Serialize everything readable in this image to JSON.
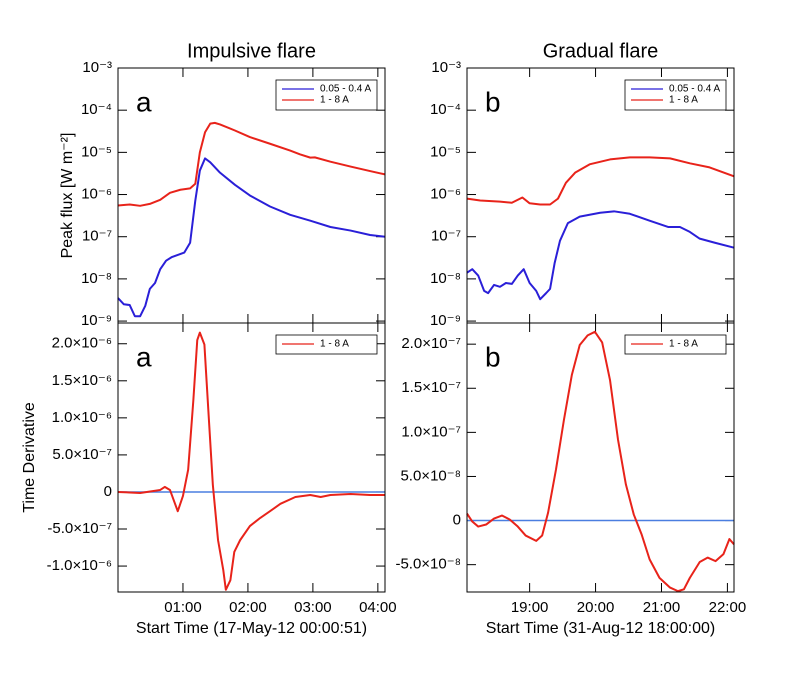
{
  "chart_data": [
    {
      "type": "line",
      "title": "Impulsive flare",
      "annotation": "a",
      "ylabel": "Peak flux [W m⁻²]",
      "log": true,
      "legend": "upper right",
      "xlim": [
        0,
        4.11
      ],
      "xticks": [
        1,
        2,
        3,
        4
      ],
      "ylim": [
        9e-10,
        0.001
      ],
      "yticks": [
        {
          "value": 0.001,
          "label": "10⁻³"
        },
        {
          "value": 0.0001,
          "label": "10⁻⁴"
        },
        {
          "value": 1e-05,
          "label": "10⁻⁵"
        },
        {
          "value": 1e-06,
          "label": "10⁻⁶"
        },
        {
          "value": 1e-07,
          "label": "10⁻⁷"
        },
        {
          "value": 1e-08,
          "label": "10⁻⁸"
        },
        {
          "value": 1e-09,
          "label": "10⁻⁹"
        }
      ],
      "series": [
        {
          "name": "0.05 - 0.4 A",
          "color": "#2a1fd8",
          "x": [
            0,
            0.09,
            0.18,
            0.26,
            0.34,
            0.42,
            0.49,
            0.57,
            0.65,
            0.74,
            0.83,
            0.92,
            1.02,
            1.11,
            1.19,
            1.26,
            1.34,
            1.42,
            1.57,
            1.8,
            2.03,
            2.34,
            2.65,
            2.96,
            3.27,
            3.58,
            3.88,
            4.11
          ],
          "values": [
            3.5e-09,
            2.5e-09,
            2.4e-09,
            1.3e-09,
            1.3e-09,
            2.3e-09,
            5.8e-09,
            8e-09,
            1.7e-08,
            2.7e-08,
            3.3e-08,
            3.7e-08,
            4.2e-08,
            7.2e-08,
            7.2e-07,
            3.7e-06,
            7.2e-06,
            5.8e-06,
            3.3e-06,
            1.7e-06,
            9.5e-07,
            5.2e-07,
            3.3e-07,
            2.4e-07,
            1.7e-07,
            1.4e-07,
            1.1e-07,
            1e-07
          ]
        },
        {
          "name": "1 - 8 A",
          "color": "#e8231a",
          "x": [
            0,
            0.18,
            0.34,
            0.49,
            0.65,
            0.8,
            0.96,
            1.11,
            1.19,
            1.26,
            1.34,
            1.42,
            1.49,
            1.57,
            1.8,
            2.03,
            2.34,
            2.65,
            2.8,
            2.96,
            3.03,
            3.27,
            3.58,
            3.88,
            4.11
          ],
          "values": [
            5.5e-07,
            5.8e-07,
            5.4e-07,
            6e-07,
            7.5e-07,
            1.1e-06,
            1.3e-06,
            1.4e-06,
            1.8e-06,
            1e-05,
            3e-05,
            4.8e-05,
            5e-05,
            4.6e-05,
            3.3e-05,
            2.3e-05,
            1.6e-05,
            1.1e-05,
            9e-06,
            7.5e-06,
            7.6e-06,
            6e-06,
            4.6e-06,
            3.6e-06,
            3e-06
          ]
        }
      ]
    },
    {
      "type": "line",
      "title": "Gradual flare",
      "annotation": "b",
      "log": true,
      "legend": "upper right",
      "xlim": [
        18.05,
        22.1
      ],
      "xticks": [
        19,
        20,
        21,
        22
      ],
      "ylim": [
        9e-10,
        0.001
      ],
      "yticks": [
        {
          "value": 0.001,
          "label": "10⁻³"
        },
        {
          "value": 0.0001,
          "label": "10⁻⁴"
        },
        {
          "value": 1e-05,
          "label": "10⁻⁵"
        },
        {
          "value": 1e-06,
          "label": "10⁻⁶"
        },
        {
          "value": 1e-07,
          "label": "10⁻⁷"
        },
        {
          "value": 1e-08,
          "label": "10⁻⁸"
        },
        {
          "value": 1e-09,
          "label": "10⁻⁹"
        }
      ],
      "series": [
        {
          "name": "0.05 - 0.4 A",
          "color": "#2a1fd8",
          "x": [
            18.05,
            18.13,
            18.22,
            18.31,
            18.37,
            18.46,
            18.55,
            18.64,
            18.73,
            18.82,
            18.91,
            19.0,
            19.1,
            19.16,
            19.25,
            19.31,
            19.38,
            19.46,
            19.58,
            19.76,
            20.07,
            20.28,
            20.52,
            20.82,
            21.1,
            21.28,
            21.43,
            21.58,
            21.81,
            22.1
          ],
          "values": [
            1.4e-08,
            1.7e-08,
            1.2e-08,
            5.2e-09,
            4.6e-09,
            7.2e-09,
            6.5e-09,
            8e-09,
            7.6e-09,
            1.2e-08,
            1.7e-08,
            8e-09,
            5.2e-09,
            3.3e-09,
            4.6e-09,
            5.8e-09,
            2.4e-08,
            8e-08,
            2.1e-07,
            3e-07,
            3.7e-07,
            4e-07,
            3.5e-07,
            2.4e-07,
            1.7e-07,
            1.7e-07,
            1.3e-07,
            9e-08,
            7.2e-08,
            5.5e-08
          ]
        },
        {
          "name": "1 - 8 A",
          "color": "#e8231a",
          "x": [
            18.05,
            18.25,
            18.55,
            18.73,
            18.89,
            19.0,
            19.16,
            19.31,
            19.43,
            19.55,
            19.69,
            19.91,
            20.22,
            20.52,
            20.82,
            21.13,
            21.43,
            21.73,
            22.1
          ],
          "values": [
            8e-07,
            7.2e-07,
            6.8e-07,
            6.4e-07,
            8.5e-07,
            6.2e-07,
            5.8e-07,
            5.8e-07,
            8e-07,
            1.9e-06,
            3.3e-06,
            5.2e-06,
            6.8e-06,
            7.6e-06,
            7.6e-06,
            7.2e-06,
            5.5e-06,
            4.4e-06,
            2.7e-06
          ]
        }
      ]
    },
    {
      "type": "line",
      "annotation": "a",
      "ylabel": "Time Derivative",
      "xlabel": "Start Time (17-May-12 00:00:51)",
      "legend": "upper right",
      "xlim": [
        0,
        4.11
      ],
      "xticks": [
        {
          "value": 1,
          "label": "01:00"
        },
        {
          "value": 2,
          "label": "02:00"
        },
        {
          "value": 3,
          "label": "03:00"
        },
        {
          "value": 4,
          "label": "04:00"
        }
      ],
      "ylim": [
        -1.35e-06,
        2.28e-06
      ],
      "yticks": [
        {
          "value": 2e-06,
          "label": "2.0×10⁻⁶"
        },
        {
          "value": 1.5e-06,
          "label": "1.5×10⁻⁶"
        },
        {
          "value": 1e-06,
          "label": "1.0×10⁻⁶"
        },
        {
          "value": 5e-07,
          "label": "5.0×10⁻⁷"
        },
        0,
        {
          "value": -5e-07,
          "label": "-5.0×10⁻⁷"
        },
        {
          "value": -1e-06,
          "label": "-1.0×10⁻⁶"
        }
      ],
      "reference_line": {
        "value": 0,
        "color": "#4a7ee0"
      },
      "series": [
        {
          "name": "1 - 8 A",
          "color": "#e8231a",
          "x": [
            0,
            0.34,
            0.65,
            0.72,
            0.8,
            0.92,
            1.0,
            1.08,
            1.16,
            1.22,
            1.26,
            1.33,
            1.39,
            1.46,
            1.54,
            1.62,
            1.66,
            1.73,
            1.79,
            1.88,
            2.03,
            2.19,
            2.34,
            2.5,
            2.73,
            2.96,
            3.12,
            3.27,
            3.58,
            3.88,
            4.11
          ],
          "values": [
            0,
            -1.4e-08,
            2.7e-08,
            6.8e-08,
            2.7e-08,
            -2.6e-07,
            -5.4e-08,
            3e-07,
            1.24e-06,
            2.05e-06,
            2.15e-06,
            1.99e-06,
            1.11e-06,
            9.5e-08,
            -6.5e-07,
            -1.05e-06,
            -1.32e-06,
            -1.19e-06,
            -8.1e-07,
            -6.5e-07,
            -4.6e-07,
            -3.5e-07,
            -2.6e-07,
            -1.6e-07,
            -6.8e-08,
            -4.1e-08,
            -6.8e-08,
            -4.1e-08,
            -2.7e-08,
            -4.1e-08,
            -4.1e-08
          ]
        }
      ]
    },
    {
      "type": "line",
      "annotation": "b",
      "xlabel": "Start Time (31-Aug-12 18:00:00)",
      "legend": "upper right",
      "xlim": [
        18.05,
        22.1
      ],
      "xticks": [
        {
          "value": 19,
          "label": "19:00"
        },
        {
          "value": 20,
          "label": "20:00"
        },
        {
          "value": 21,
          "label": "21:00"
        },
        {
          "value": 22,
          "label": "22:00"
        }
      ],
      "ylim": [
        -8.1e-08,
        2.24e-07
      ],
      "yticks": [
        {
          "value": 2e-07,
          "label": "2.0×10⁻⁷"
        },
        {
          "value": 1.5e-07,
          "label": "1.5×10⁻⁷"
        },
        {
          "value": 1e-07,
          "label": "1.0×10⁻⁷"
        },
        {
          "value": 5e-08,
          "label": "5.0×10⁻⁸"
        },
        0,
        {
          "value": -5e-08,
          "label": "-5.0×10⁻⁸"
        }
      ],
      "reference_line": {
        "value": 0,
        "color": "#4a7ee0"
      },
      "series": [
        {
          "name": "1 - 8 A",
          "color": "#e8231a",
          "x": [
            18.05,
            18.13,
            18.22,
            18.34,
            18.46,
            18.58,
            18.7,
            18.82,
            18.94,
            19.1,
            19.19,
            19.28,
            19.4,
            19.52,
            19.64,
            19.76,
            19.88,
            19.99,
            20.1,
            20.22,
            20.34,
            20.46,
            20.58,
            20.7,
            20.82,
            20.97,
            21.13,
            21.25,
            21.34,
            21.43,
            21.58,
            21.7,
            21.82,
            21.94,
            22.03,
            22.1
          ],
          "values": [
            7.9e-09,
            -1.1e-09,
            -6.8e-09,
            -4.5e-09,
            2.3e-09,
            5.7e-09,
            1.1e-09,
            -6.8e-09,
            -1.7e-08,
            -2.3e-08,
            -1.7e-08,
            9e-09,
            5.8e-08,
            1.14e-07,
            1.65e-07,
            1.99e-07,
            2.1e-07,
            2.14e-07,
            2.02e-07,
            1.59e-07,
            9.2e-08,
            4.1e-08,
            6.8e-09,
            -1.6e-08,
            -4.4e-08,
            -6.5e-08,
            -7.6e-08,
            -8e-08,
            -7.8e-08,
            -6.5e-08,
            -4.7e-08,
            -4.2e-08,
            -4.6e-08,
            -3.8e-08,
            -2.1e-08,
            -2.7e-08
          ]
        }
      ]
    }
  ]
}
